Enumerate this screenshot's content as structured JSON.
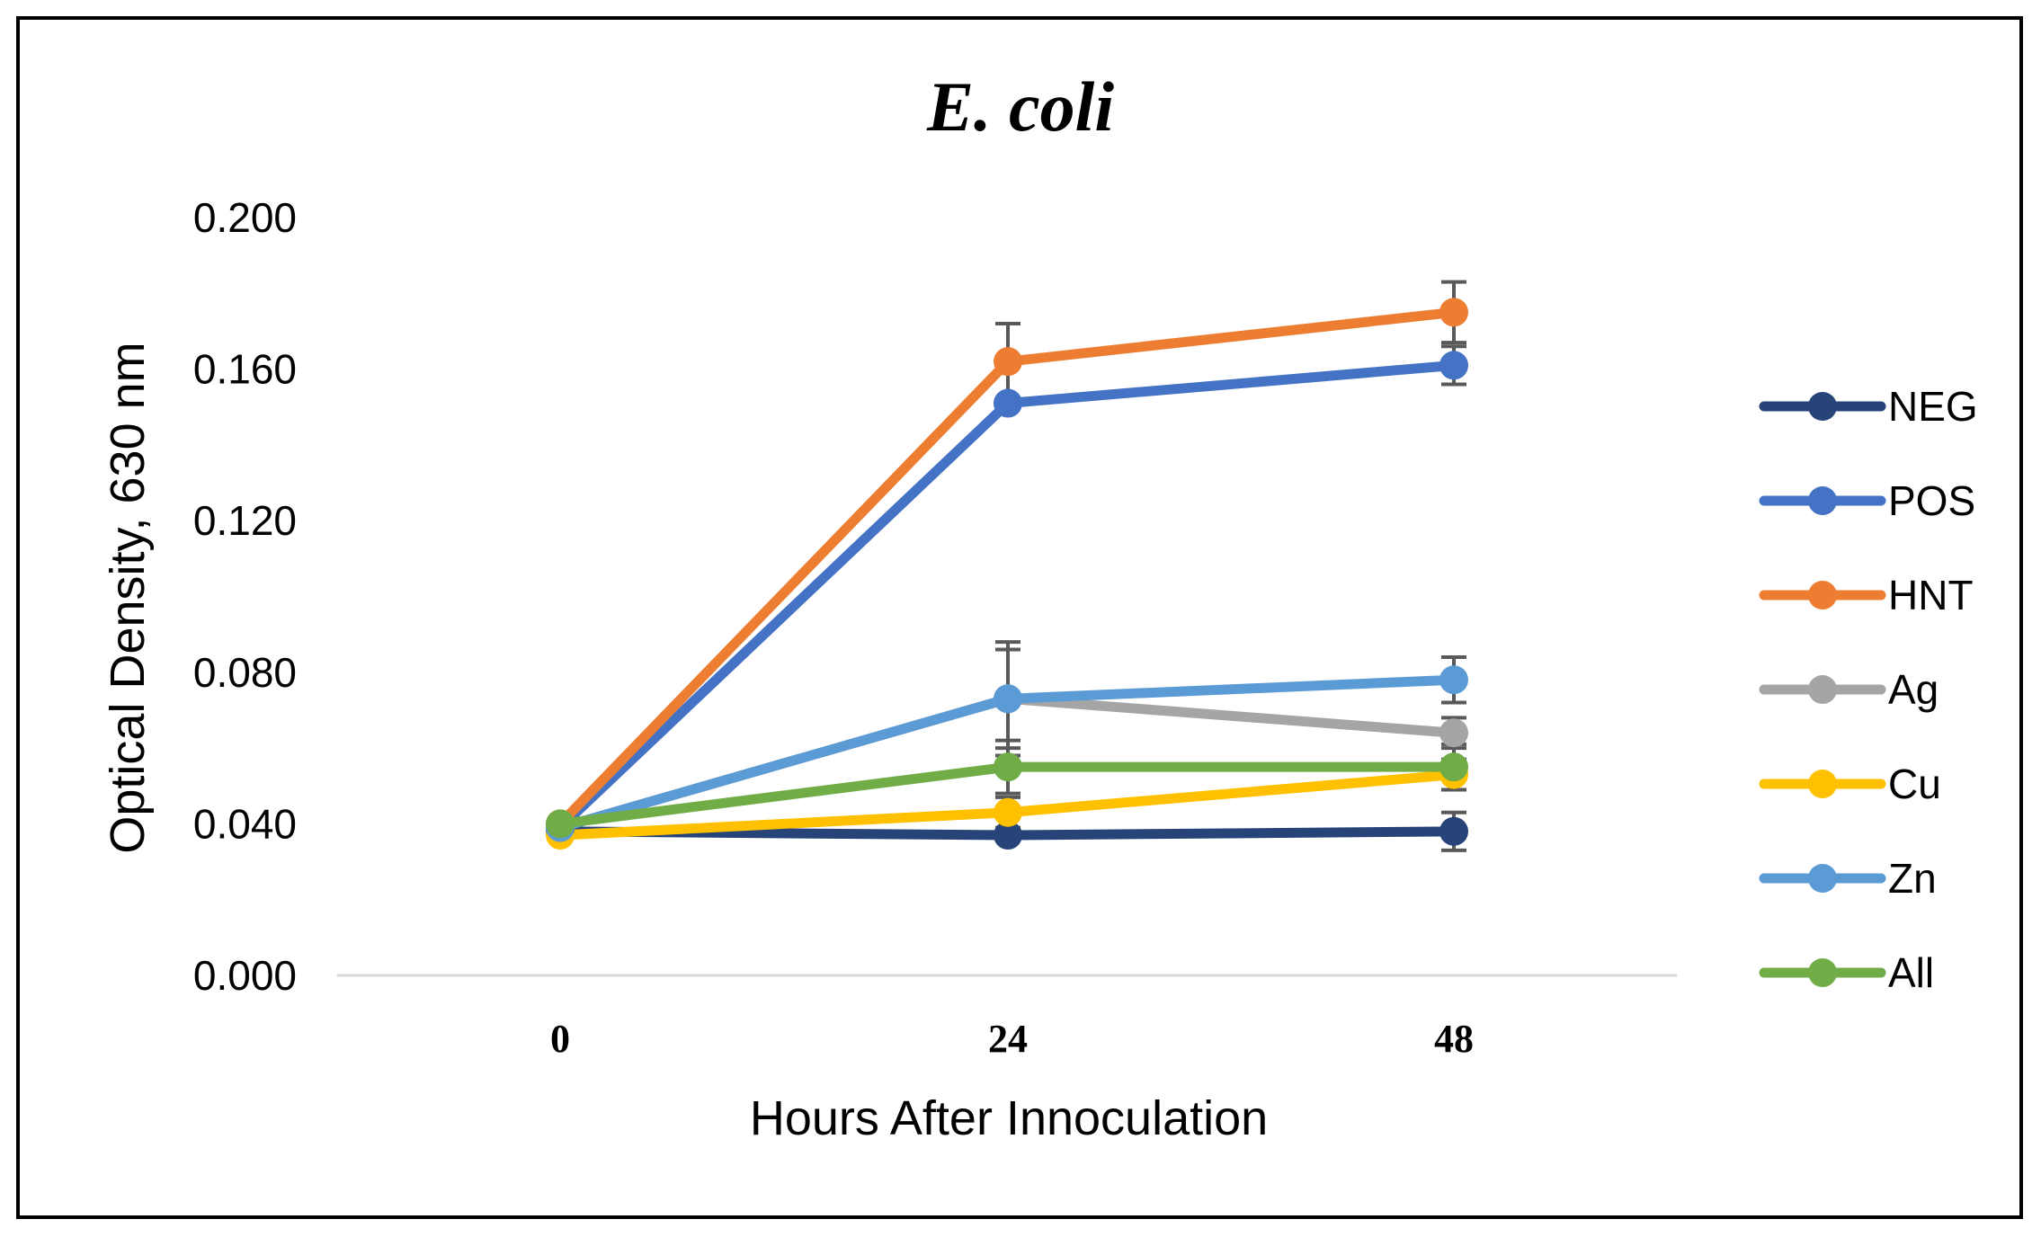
{
  "chart_data": {
    "type": "line",
    "title": "E. coli",
    "xlabel": "Hours After Innoculation",
    "ylabel": "Optical Density, 630 nm",
    "categories": [
      "0",
      "24",
      "48"
    ],
    "yticks": [
      "0.000",
      "0.040",
      "0.080",
      "0.120",
      "0.160",
      "0.200"
    ],
    "ylim": [
      0,
      0.2
    ],
    "grid": false,
    "legend_position": "right",
    "series": [
      {
        "name": "NEG",
        "color": "#264478",
        "values": [
          0.038,
          0.037,
          0.038
        ],
        "errors": [
          0,
          0,
          0.005
        ]
      },
      {
        "name": "POS",
        "color": "#4472C4",
        "values": [
          0.039,
          0.151,
          0.161
        ],
        "errors": [
          0,
          0,
          0.005
        ]
      },
      {
        "name": "HNT",
        "color": "#ED7D31",
        "values": [
          0.04,
          0.162,
          0.175
        ],
        "errors": [
          0,
          0.01,
          0.008
        ]
      },
      {
        "name": "Ag",
        "color": "#A5A5A5",
        "values": [
          0.039,
          0.073,
          0.064
        ],
        "errors": [
          0,
          0.015,
          0.004
        ]
      },
      {
        "name": "Cu",
        "color": "#FFC000",
        "values": [
          0.037,
          0.043,
          0.053
        ],
        "errors": [
          0,
          0.004,
          0.004
        ]
      },
      {
        "name": "Zn",
        "color": "#5B9BD5",
        "values": [
          0.039,
          0.073,
          0.078
        ],
        "errors": [
          0,
          0.013,
          0.006
        ]
      },
      {
        "name": "All",
        "color": "#70AD47",
        "values": [
          0.04,
          0.055,
          0.055
        ],
        "errors": [
          0,
          0.007,
          0.006
        ]
      }
    ]
  }
}
